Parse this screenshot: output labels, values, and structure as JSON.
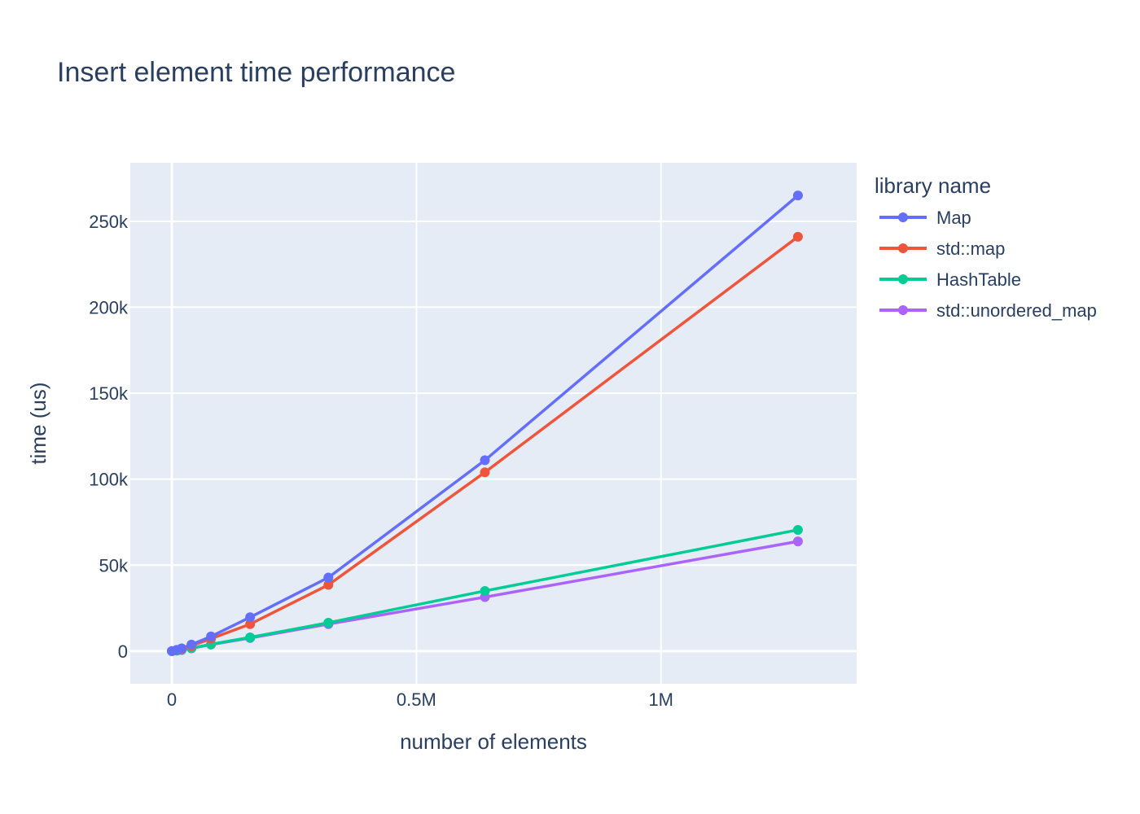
{
  "chart_data": {
    "type": "line",
    "title": "Insert element time performance",
    "xlabel": "number of elements",
    "ylabel": "time (us)",
    "legend_title": "library name",
    "legend_placement": "right",
    "grid": true,
    "xlim": [
      -85000,
      1400000
    ],
    "ylim": [
      -19000,
      284000
    ],
    "x_ticks": [
      {
        "value": 0,
        "label": "0"
      },
      {
        "value": 500000,
        "label": "0.5M"
      },
      {
        "value": 1000000,
        "label": "1M"
      }
    ],
    "y_ticks": [
      {
        "value": 0,
        "label": "0"
      },
      {
        "value": 50000,
        "label": "50k"
      },
      {
        "value": 100000,
        "label": "100k"
      },
      {
        "value": 150000,
        "label": "150k"
      },
      {
        "value": 200000,
        "label": "200k"
      },
      {
        "value": 250000,
        "label": "250k"
      }
    ],
    "x": [
      0,
      10000,
      20000,
      40000,
      80000,
      160000,
      320000,
      640000,
      1280000
    ],
    "series": [
      {
        "name": "Map",
        "color": "#636efa",
        "values": [
          0,
          700,
          1600,
          3800,
          8500,
          19700,
          42800,
          111000,
          265000
        ]
      },
      {
        "name": "std::map",
        "color": "#ef553b",
        "values": [
          0,
          600,
          1300,
          3100,
          7200,
          15700,
          38500,
          104000,
          241000
        ]
      },
      {
        "name": "HashTable",
        "color": "#00cc96",
        "values": [
          0,
          300,
          700,
          1700,
          4000,
          8000,
          16500,
          35000,
          70500
        ]
      },
      {
        "name": "std::unordered_map",
        "color": "#ab63fa",
        "values": [
          0,
          300,
          600,
          1600,
          3800,
          7600,
          15700,
          31400,
          63800
        ]
      }
    ]
  }
}
